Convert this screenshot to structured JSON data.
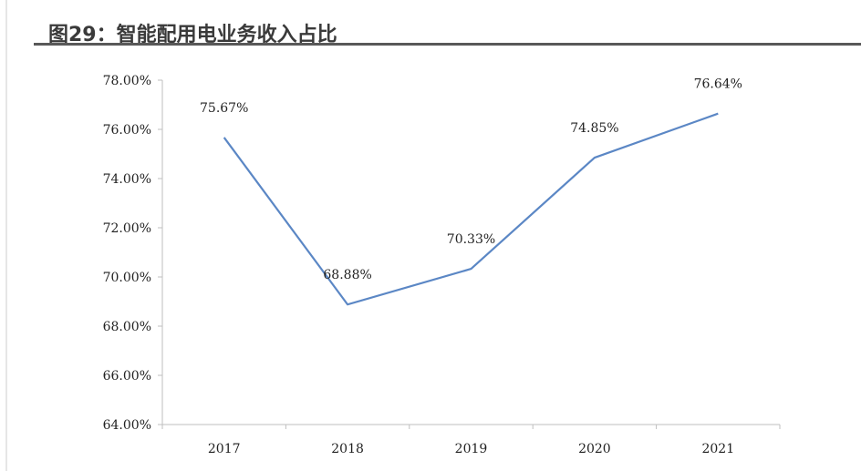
{
  "header": {
    "title": "图29：智能配用电业务收入占比"
  },
  "chart_data": {
    "type": "line",
    "title": "",
    "xlabel": "",
    "ylabel": "",
    "categories": [
      "2017",
      "2018",
      "2019",
      "2020",
      "2021"
    ],
    "values": [
      75.67,
      68.88,
      70.33,
      74.85,
      76.64
    ],
    "data_labels": [
      "75.67%",
      "68.88%",
      "70.33%",
      "74.85%",
      "76.64%"
    ],
    "ylim": [
      64,
      78
    ],
    "y_ticks": [
      64,
      66,
      68,
      70,
      72,
      74,
      76,
      78
    ],
    "y_tick_labels": [
      "64.00%",
      "66.00%",
      "68.00%",
      "70.00%",
      "72.00%",
      "74.00%",
      "76.00%",
      "78.00%"
    ],
    "grid": false,
    "legend": "none",
    "line_color": "#5b87c5",
    "axis_color": "#bfbfbf"
  }
}
